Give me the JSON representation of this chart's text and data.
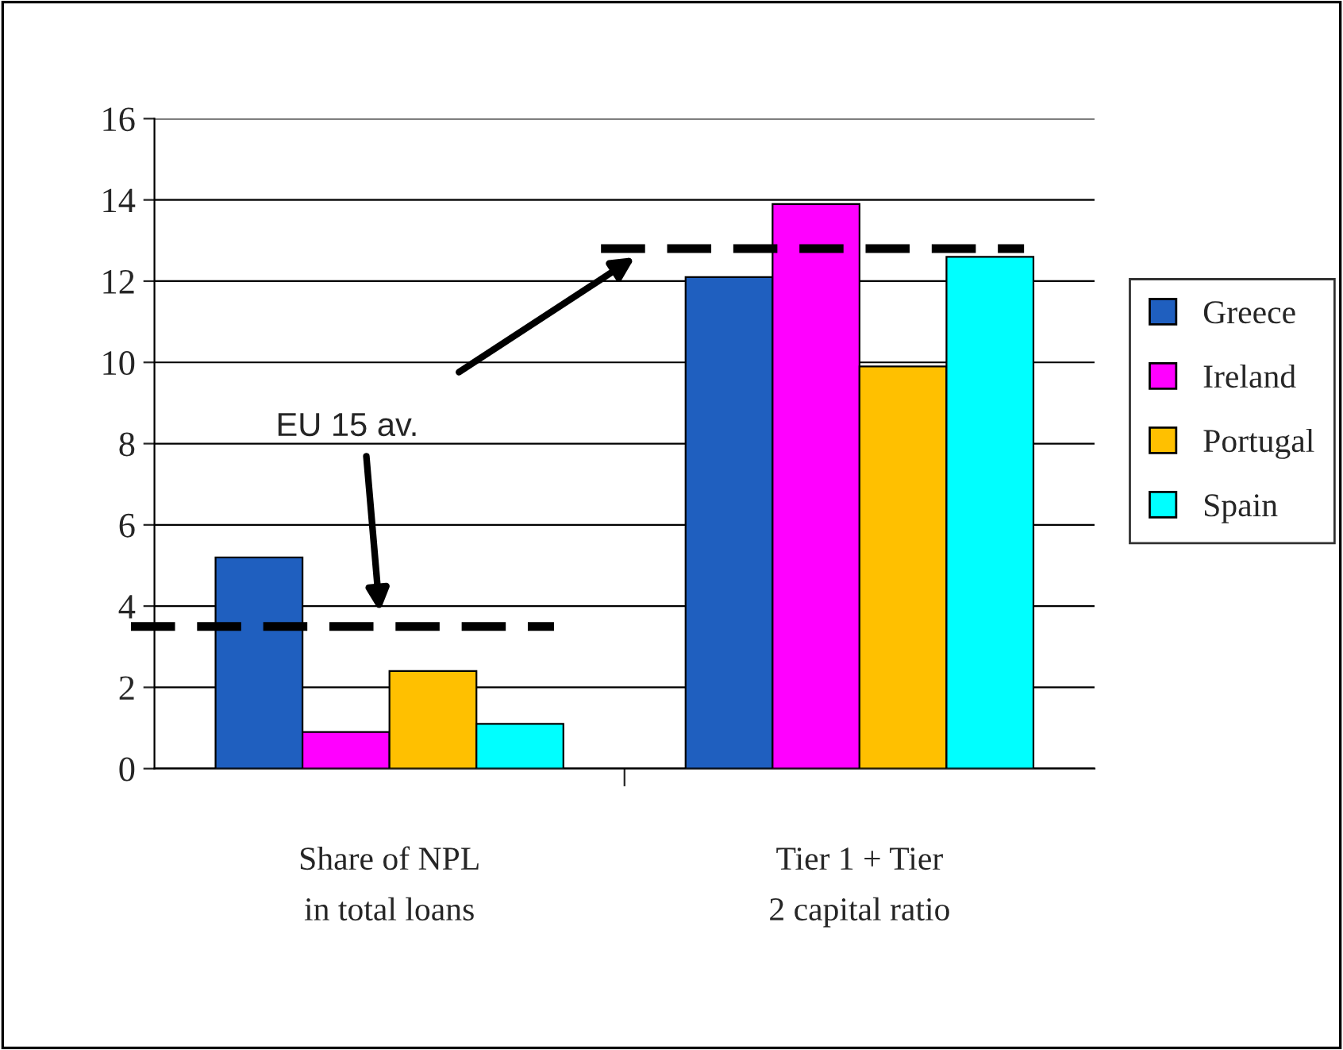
{
  "chart_data": {
    "type": "bar",
    "categories": [
      "Share of NPL in total loans",
      "Tier 1 + Tier 2 capital ratio"
    ],
    "series": [
      {
        "name": "Greece",
        "color": "#1f5fbf",
        "values": [
          5.2,
          12.1
        ]
      },
      {
        "name": "Ireland",
        "color": "#ff00ff",
        "values": [
          0.9,
          13.9
        ]
      },
      {
        "name": "Portugal",
        "color": "#ffc000",
        "values": [
          2.4,
          9.9
        ]
      },
      {
        "name": "Spain",
        "color": "#00ffff",
        "values": [
          1.1,
          12.6
        ]
      }
    ],
    "ylim": [
      0,
      16
    ],
    "yticks": [
      0,
      2,
      4,
      6,
      8,
      10,
      12,
      14,
      16
    ],
    "grid": "y",
    "legend": "right",
    "ref_lines": [
      {
        "axis": "y",
        "value": 3.5,
        "line_style": "dashed",
        "color": "#000000"
      },
      {
        "axis": "y",
        "value": 12.8,
        "line_style": "dashed",
        "color": "#000000"
      }
    ],
    "annotations": [
      "EU 15 av."
    ]
  }
}
